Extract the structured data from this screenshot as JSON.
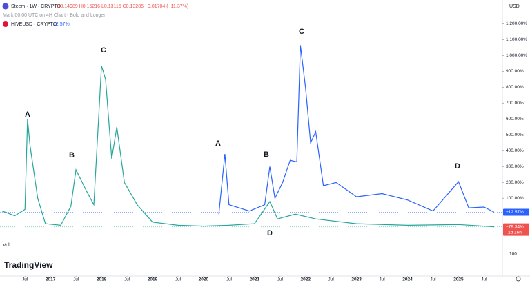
{
  "header": {
    "symbol": "Steem · 1W · CRYPTO",
    "ohlc": "O0.14989 H0.15216 L0.13115 C0.13285 −0.01704 (−11.37%)",
    "indicator": "Mark 00:00 UTC on 4H Chart - Bold and Longer",
    "compare": "HIVEUSD · CRYPTO",
    "compare_change": "12.57%",
    "currency": "USD",
    "vol": "Vol",
    "brand": "TradingView"
  },
  "chart_data": {
    "type": "line",
    "xlim": [
      2016.01,
      2025.86
    ],
    "xticks": [
      {
        "value": 2016.5,
        "label": "Jul"
      },
      {
        "value": 2017,
        "label": "2017"
      },
      {
        "value": 2017.5,
        "label": "Jul"
      },
      {
        "value": 2018,
        "label": "2018"
      },
      {
        "value": 2018.5,
        "label": "Jul"
      },
      {
        "value": 2019,
        "label": "2019"
      },
      {
        "value": 2019.5,
        "label": "Jul"
      },
      {
        "value": 2020,
        "label": "2020"
      },
      {
        "value": 2020.5,
        "label": "Jul"
      },
      {
        "value": 2021,
        "label": "2021"
      },
      {
        "value": 2021.5,
        "label": "Jul"
      },
      {
        "value": 2022,
        "label": "2022"
      },
      {
        "value": 2022.5,
        "label": "Jul"
      },
      {
        "value": 2023,
        "label": "2023"
      },
      {
        "value": 2023.5,
        "label": "Jul"
      },
      {
        "value": 2024,
        "label": "2024"
      },
      {
        "value": 2024.5,
        "label": "Jul"
      },
      {
        "value": 2025,
        "label": "2025"
      },
      {
        "value": 2025.5,
        "label": "Jul"
      }
    ],
    "ylim": [
      -390,
      1350
    ],
    "yticks": [
      {
        "value": 1200,
        "label": "1,200.00%"
      },
      {
        "value": 1100,
        "label": "1,100.00%"
      },
      {
        "value": 1000,
        "label": "1,000.00%"
      },
      {
        "value": 900,
        "label": "900.00%"
      },
      {
        "value": 800,
        "label": "800.00%"
      },
      {
        "value": 700,
        "label": "700.00%"
      },
      {
        "value": 600,
        "label": "600.00%"
      },
      {
        "value": 500,
        "label": "500.00%"
      },
      {
        "value": 400,
        "label": "400.00%"
      },
      {
        "value": 300,
        "label": "300.00%"
      },
      {
        "value": 200,
        "label": "200.00%"
      },
      {
        "value": 100,
        "label": "100.00%"
      }
    ],
    "vol_tick": "100",
    "series": [
      {
        "name": "Steem",
        "color": "#26a69a",
        "x": [
          2016.05,
          2016.3,
          2016.5,
          2016.55,
          2016.6,
          2016.75,
          2016.9,
          2017.2,
          2017.4,
          2017.5,
          2017.7,
          2017.85,
          2018.0,
          2018.08,
          2018.2,
          2018.3,
          2018.45,
          2018.7,
          2019.0,
          2019.5,
          2020.0,
          2020.5,
          2021.0,
          2021.3,
          2021.45,
          2021.8,
          2022.2,
          2023.0,
          2024.0,
          2025.0,
          2025.7
        ],
        "values": [
          20,
          -10,
          30,
          600,
          430,
          100,
          -60,
          -70,
          50,
          280,
          150,
          60,
          935,
          850,
          350,
          550,
          200,
          60,
          -50,
          -70,
          -75,
          -70,
          -60,
          80,
          -30,
          0,
          -30,
          -60,
          -70,
          -65,
          -79.34
        ],
        "last_label": "−79.34%",
        "countdown": "2d 16h",
        "tag_color": "#ef5350"
      },
      {
        "name": "HIVEUSD",
        "color": "#2962ff",
        "x": [
          2020.3,
          2020.42,
          2020.5,
          2020.9,
          2021.2,
          2021.3,
          2021.4,
          2021.55,
          2021.7,
          2021.83,
          2021.9,
          2022.0,
          2022.1,
          2022.2,
          2022.35,
          2022.6,
          2023.0,
          2023.5,
          2024.0,
          2024.5,
          2025.0,
          2025.2,
          2025.5,
          2025.7
        ],
        "values": [
          0,
          380,
          60,
          20,
          60,
          300,
          100,
          200,
          340,
          330,
          1065,
          800,
          450,
          520,
          180,
          200,
          110,
          130,
          90,
          20,
          205,
          40,
          45,
          12.57
        ],
        "last_label": "+12.57%",
        "tag_color": "#2962ff"
      }
    ],
    "annotations": [
      "A",
      "B",
      "C",
      "A",
      "B",
      "C",
      "D",
      "D"
    ]
  }
}
